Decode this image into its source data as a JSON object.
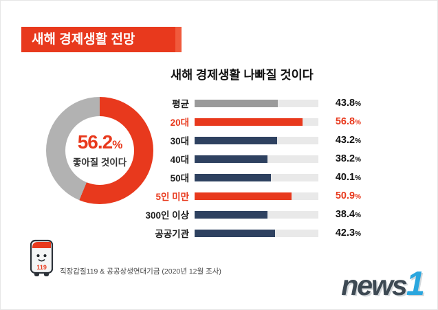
{
  "header": {
    "title": "새해 경제생활 전망"
  },
  "donut": {
    "value": "56.2",
    "percent_sign": "%",
    "label": "좋아질 것이다"
  },
  "bars": {
    "title": "새해 경제생활 나빠질 것이다"
  },
  "footer": {
    "source": "직장갑질119 & 공공상생연대기금 (2020년 12월 조사)",
    "mascot_text": "119",
    "logo_news": "news",
    "logo_one": "1"
  },
  "colors": {
    "accent_red": "#e8391d",
    "navy": "#2e4160",
    "avg_gray": "#9a9a9a",
    "track_gray": "#e9e9e9",
    "donut_gray": "#b2b2b2",
    "logo_dark": "#3d4953",
    "logo_blue": "#2aa6de"
  },
  "chart_data": [
    {
      "type": "pie",
      "donut": true,
      "title": "새해 경제생활 전망",
      "labels": [
        "좋아질 것이다",
        ""
      ],
      "values": [
        56.2,
        43.8
      ],
      "colors": [
        "#e8391d",
        "#b2b2b2"
      ]
    },
    {
      "type": "bar",
      "orientation": "horizontal",
      "title": "새해 경제생활 나빠질 것이다",
      "xlim": [
        0,
        65
      ],
      "xmax": 65,
      "categories": [
        "평균",
        "20대",
        "30대",
        "40대",
        "50대",
        "5인 미만",
        "300인 이상",
        "공공기관"
      ],
      "values": [
        43.8,
        56.8,
        43.2,
        38.2,
        40.1,
        50.9,
        38.4,
        42.3
      ],
      "rows": [
        {
          "label": "평균",
          "value": 43.8,
          "display": "43.8",
          "color": "#9a9a9a",
          "accent": false,
          "group_start": false
        },
        {
          "label": "20대",
          "value": 56.8,
          "display": "56.8",
          "color": "#e8391d",
          "accent": true,
          "group_start": true
        },
        {
          "label": "30대",
          "value": 43.2,
          "display": "43.2",
          "color": "#2e4160",
          "accent": false,
          "group_start": false
        },
        {
          "label": "40대",
          "value": 38.2,
          "display": "38.2",
          "color": "#2e4160",
          "accent": false,
          "group_start": false
        },
        {
          "label": "50대",
          "value": 40.1,
          "display": "40.1",
          "color": "#2e4160",
          "accent": false,
          "group_start": false
        },
        {
          "label": "5인 미만",
          "value": 50.9,
          "display": "50.9",
          "color": "#e8391d",
          "accent": true,
          "group_start": true
        },
        {
          "label": "300인 이상",
          "value": 38.4,
          "display": "38.4",
          "color": "#2e4160",
          "accent": false,
          "group_start": false
        },
        {
          "label": "공공기관",
          "value": 42.3,
          "display": "42.3",
          "color": "#2e4160",
          "accent": false,
          "group_start": false
        }
      ]
    }
  ]
}
